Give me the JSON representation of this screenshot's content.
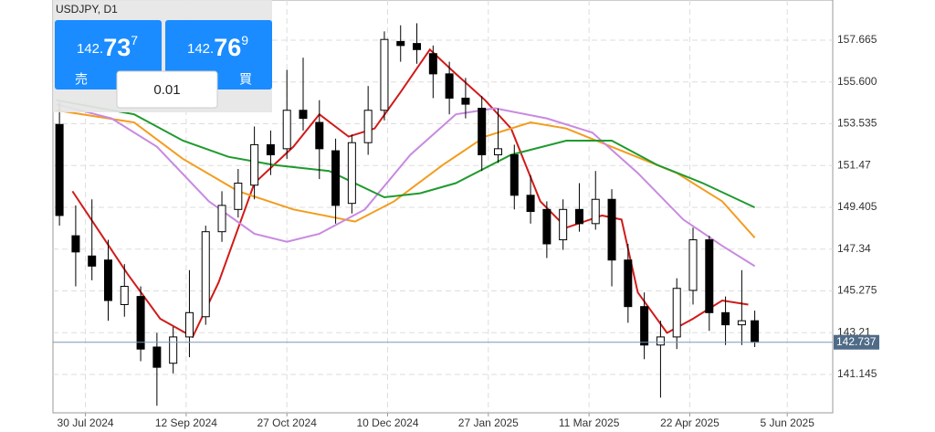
{
  "chart_data": {
    "type": "candlestick",
    "title": "USDJPY, D1",
    "x": [
      2,
      7,
      12,
      17,
      22,
      27,
      32,
      37,
      42,
      47,
      52,
      57,
      62,
      67,
      72,
      77,
      82,
      87,
      92,
      97,
      102,
      107,
      112,
      117,
      122,
      127,
      132,
      137,
      142,
      147,
      152,
      157,
      162,
      167,
      172,
      177,
      182,
      187,
      192,
      197,
      202,
      207,
      212,
      216
    ],
    "open": [
      153.5,
      148,
      147,
      146.8,
      144.6,
      145,
      142.5,
      141.7,
      143,
      144,
      148.2,
      149.3,
      150.5,
      152.5,
      152.3,
      154.2,
      153.6,
      152.2,
      149.6,
      152.6,
      154.2,
      157.6,
      157.5,
      157,
      156,
      154.8,
      154.3,
      152,
      152,
      150,
      149.3,
      147.8,
      149.3,
      148.6,
      149.8,
      146.8,
      144.5,
      142.6,
      143,
      145.3,
      147.8,
      144.2,
      143.6,
      143.8
    ],
    "high": [
      154.6,
      149.5,
      149.8,
      147.8,
      146.6,
      145.5,
      143.2,
      143.5,
      146.3,
      148.5,
      150.2,
      151.3,
      153.4,
      153.2,
      156.2,
      156.8,
      154.7,
      152.8,
      153,
      155.4,
      158.1,
      158.4,
      158.5,
      157.4,
      156.6,
      155.8,
      154.9,
      154.3,
      152.5,
      151,
      149.7,
      149.8,
      150.6,
      151.2,
      150.3,
      147.6,
      145.2,
      143.8,
      145.9,
      148.4,
      148,
      145,
      146.3,
      144.3
    ],
    "low": [
      148.5,
      145.5,
      145.8,
      143.8,
      144,
      141.8,
      139.6,
      141.2,
      142,
      143.6,
      147.7,
      148.9,
      149.8,
      151,
      151.8,
      153.2,
      150.8,
      148.6,
      149.1,
      152,
      153.7,
      156.6,
      156.5,
      154.8,
      154,
      153.8,
      151.2,
      151.6,
      149.3,
      148.6,
      146.9,
      147.3,
      148.2,
      148.3,
      145.5,
      143.7,
      141.9,
      140,
      142.4,
      144.6,
      143.3,
      142.6,
      142.6,
      142.5
    ],
    "close": [
      149,
      147.2,
      146.5,
      144.8,
      145.5,
      142.4,
      141.5,
      143,
      144.2,
      148.2,
      149.5,
      150.6,
      152.5,
      152,
      154.2,
      153.8,
      152.3,
      149.5,
      152.6,
      154.2,
      157.7,
      157.4,
      157.2,
      156,
      154.8,
      154.5,
      152,
      152.3,
      150,
      149.2,
      147.6,
      149.3,
      148.6,
      149.8,
      146.8,
      144.5,
      142.6,
      143,
      145.4,
      147.8,
      144.2,
      143.6,
      143.8,
      142.74
    ],
    "moving_averages": [
      {
        "color": "#d11a1a",
        "x": [
          6,
          23,
          33,
          43,
          51,
          62,
          74,
          82,
          91,
          99,
          107,
          116,
          124,
          133,
          141,
          150,
          158,
          169,
          175,
          180,
          189,
          197,
          206,
          214
        ],
        "values": [
          150.2,
          146.1,
          143.9,
          143,
          145.7,
          150.6,
          152.4,
          154,
          152.9,
          153.3,
          155.1,
          157.2,
          156,
          154.7,
          153.3,
          149.7,
          148.4,
          149,
          148.8,
          145.2,
          143.2,
          143.9,
          144.8,
          144.6
        ]
      },
      {
        "color": "#f39c1e",
        "x": [
          1,
          25,
          40,
          57,
          74,
          93,
          105,
          120,
          133,
          147,
          158,
          175,
          192,
          206,
          216
        ],
        "values": [
          154.2,
          153.6,
          151.8,
          150.2,
          149.3,
          148.7,
          149.7,
          151.5,
          152.9,
          153.6,
          153.3,
          152.2,
          151.1,
          149.7,
          147.9
        ]
      },
      {
        "color": "#c88ae0",
        "x": [
          1,
          18,
          32,
          48,
          62,
          72,
          82,
          96,
          110,
          124,
          136,
          152,
          166,
          180,
          194,
          206,
          216
        ],
        "values": [
          154.5,
          153.8,
          152.4,
          149.7,
          148.1,
          147.7,
          148.1,
          149.3,
          152,
          154,
          154.3,
          153.8,
          153.1,
          151.1,
          148.8,
          147.5,
          146.5
        ]
      },
      {
        "color": "#1f9a2e",
        "x": [
          1,
          25,
          40,
          54,
          68,
          85,
          102,
          113,
          124,
          141,
          158,
          172,
          186,
          200,
          216
        ],
        "values": [
          154.7,
          154,
          152.7,
          151.9,
          151.5,
          151.2,
          149.9,
          150.1,
          150.6,
          152,
          152.7,
          152.7,
          151.5,
          150.6,
          149.4
        ]
      }
    ],
    "last_price": 142.737,
    "xlim": [
      0,
      240
    ],
    "ylim": [
      139.25,
      159.65
    ],
    "xticks": [
      {
        "value": 10,
        "label": "30 Jul 2024"
      },
      {
        "value": 41,
        "label": "12 Sep 2024"
      },
      {
        "value": 72,
        "label": "27 Oct 2024"
      },
      {
        "value": 103,
        "label": "10 Dec 2024"
      },
      {
        "value": 134,
        "label": "27 Jan 2025"
      },
      {
        "value": 165,
        "label": "11 Mar 2025"
      },
      {
        "value": 196,
        "label": "22 Apr 2025"
      },
      {
        "value": 226,
        "label": "5 Jun 2025"
      }
    ],
    "yticks": [
      157.665,
      {
        "value": 155.6,
        "label": "155.600"
      },
      153.535,
      151.47,
      149.405,
      147.34,
      145.275,
      143.21,
      141.145
    ],
    "grid": true
  },
  "trade_panel": {
    "sell_label": "売",
    "sell_big": "142.",
    "sell_main": "73",
    "sell_small": "7",
    "buy_label": "買",
    "buy_big": "142.",
    "buy_main": "76",
    "buy_small": "9",
    "volume": "0.01"
  }
}
